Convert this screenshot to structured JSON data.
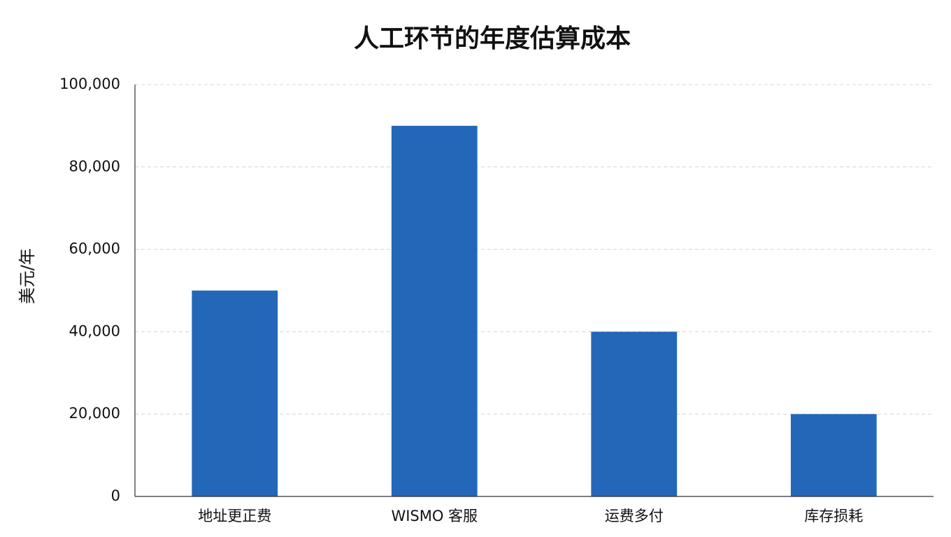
{
  "chart_data": {
    "type": "bar",
    "title": "人工环节的年度估算成本",
    "y_label": "美元/年",
    "categories": [
      "地址更正费",
      "WISMO 客服",
      "运费多付",
      "库存损耗"
    ],
    "values": [
      50000,
      90000,
      40000,
      20000
    ],
    "color": "#2367b9",
    "ylim": [
      0,
      100000
    ],
    "yticks": [
      0,
      {
        "value": 20000,
        "label": "20,000"
      },
      {
        "value": 40000,
        "label": "40,000"
      },
      {
        "value": 60000,
        "label": "60,000"
      },
      {
        "value": 80000,
        "label": "80,000"
      },
      {
        "value": 100000,
        "label": "100,000"
      }
    ],
    "grid": true
  }
}
